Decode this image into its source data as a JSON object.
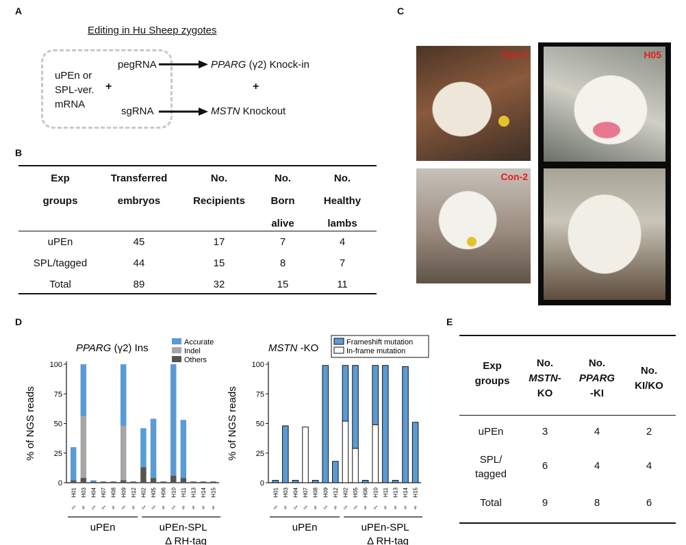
{
  "panel_a": {
    "label": "A",
    "title": "Editing in Hu Sheep zygotes",
    "box_lines": [
      "uPEn or",
      "SPL-ver.",
      "mRNA"
    ],
    "plus": "+",
    "pegrna": "pegRNA",
    "sgrna": "sgRNA",
    "target1_gene": "PPARG",
    "target1_rest": "(γ2) Knock-in",
    "plus2": "+",
    "target2_gene": "MSTN",
    "target2_rest": "Knockout"
  },
  "panel_b": {
    "label": "B",
    "headers": [
      [
        "Exp",
        "groups",
        ""
      ],
      [
        "Transferred",
        "embryos",
        ""
      ],
      [
        "No.",
        "Recipients",
        ""
      ],
      [
        "No.",
        "Born",
        "alive"
      ],
      [
        "No.",
        "Healthy",
        "lambs"
      ]
    ],
    "rows": [
      [
        "uPEn",
        "45",
        "17",
        "7",
        "4"
      ],
      [
        "SPL/tagged",
        "44",
        "15",
        "8",
        "7"
      ],
      [
        "Total",
        "89",
        "32",
        "15",
        "11"
      ]
    ]
  },
  "panel_c": {
    "label": "C",
    "photos": [
      {
        "label": "Con-1",
        "color": "#8a5a3c"
      },
      {
        "label": "Con-2",
        "color": "#9a8c7e"
      },
      {
        "label": "H05",
        "color": "#cfcfc4"
      },
      {
        "label": "",
        "color": "#c9c5b8"
      }
    ]
  },
  "panel_d": {
    "label": "D",
    "ylabel": "% of NGS reads",
    "group1": "uPEn",
    "group2_line1": "uPEn-SPL",
    "group2_line2": "Δ RH-tag"
  },
  "panel_e": {
    "label": "E",
    "headers": [
      {
        "l1": "Exp",
        "l2": "groups",
        "l3": "",
        "it": ""
      },
      {
        "l1": "No.",
        "l2": "MSTN",
        "l2b": "-",
        "l3": "KO",
        "it": "l2"
      },
      {
        "l1": "No.",
        "l2": "PPARG",
        "l3": "-KI",
        "it": "l2"
      },
      {
        "l1": "No.",
        "l2": "KI/KO",
        "l3": "",
        "it": ""
      }
    ],
    "rows": [
      {
        "group": "uPEn",
        "group2": "",
        "v": [
          "3",
          "4",
          "2"
        ]
      },
      {
        "group": "SPL/",
        "group2": "tagged",
        "v": [
          "6",
          "4",
          "4"
        ]
      },
      {
        "group": "Total",
        "group2": "",
        "v": [
          "9",
          "8",
          "6"
        ]
      }
    ]
  },
  "chart_data": [
    {
      "type": "bar",
      "title_gene": "PPARG",
      "title_rest": "(γ2) Ins",
      "ylabel": "% of NGS reads",
      "ylim": [
        0,
        100
      ],
      "yticks": [
        0,
        25,
        50,
        75,
        100
      ],
      "categories": [
        "H01",
        "H03",
        "H04",
        "H07",
        "H08",
        "H09",
        "H12",
        "H02",
        "H05",
        "H06",
        "H10",
        "H11",
        "H13",
        "H14",
        "H15"
      ],
      "sexes": [
        "♂",
        "♀",
        "♂",
        "♂",
        "♀",
        "♂",
        "♀",
        "♂",
        "♂",
        "♀",
        "♂",
        "♀",
        "♀",
        "♀",
        "♀"
      ],
      "series": [
        {
          "name": "Accurate",
          "color": "#5b9bd5",
          "values": [
            28,
            44,
            1,
            0,
            0,
            52,
            0,
            33,
            50,
            0,
            94,
            49,
            0,
            0,
            0
          ]
        },
        {
          "name": "Indel",
          "color": "#a6a6a6",
          "values": [
            0,
            52,
            0,
            0,
            0,
            46,
            0,
            0,
            0,
            0,
            0,
            0,
            0,
            0,
            0
          ]
        },
        {
          "name": "Others",
          "color": "#555555",
          "values": [
            2,
            4,
            1,
            1,
            1,
            2,
            1,
            13,
            4,
            1,
            6,
            4,
            1,
            1,
            1
          ]
        }
      ],
      "groups": [
        {
          "name": "uPEn",
          "count": 7
        },
        {
          "name": "uPEn-SPL ΔRH-tag",
          "count": 8
        }
      ]
    },
    {
      "type": "bar",
      "title_gene": "MSTN",
      "title_rest": "-KO",
      "ylabel": "% of NGS reads",
      "ylim": [
        0,
        100
      ],
      "yticks": [
        0,
        25,
        50,
        75,
        100
      ],
      "categories": [
        "H01",
        "H03",
        "H04",
        "H07",
        "H08",
        "H09",
        "H12",
        "H02",
        "H05",
        "H06",
        "H10",
        "H11",
        "H13",
        "H14",
        "H15"
      ],
      "sexes": [
        "♂",
        "♀",
        "♂",
        "♂",
        "♀",
        "♂",
        "♀",
        "♂",
        "♂",
        "♀",
        "♂",
        "♀",
        "♀",
        "♀",
        "♀"
      ],
      "series": [
        {
          "name": "Frameshift mutation",
          "color": "#5b9bd5",
          "values": [
            2,
            48,
            2,
            0,
            2,
            99,
            18,
            47,
            70,
            2,
            50,
            99,
            2,
            98,
            51
          ]
        },
        {
          "name": "In-frame mutation",
          "color": "#ffffff",
          "values": [
            0,
            0,
            0,
            47,
            0,
            0,
            0,
            52,
            29,
            0,
            49,
            0,
            0,
            0,
            0
          ]
        }
      ],
      "groups": [
        {
          "name": "uPEn",
          "count": 7
        },
        {
          "name": "uPEn-SPL ΔRH-tag",
          "count": 8
        }
      ]
    }
  ]
}
